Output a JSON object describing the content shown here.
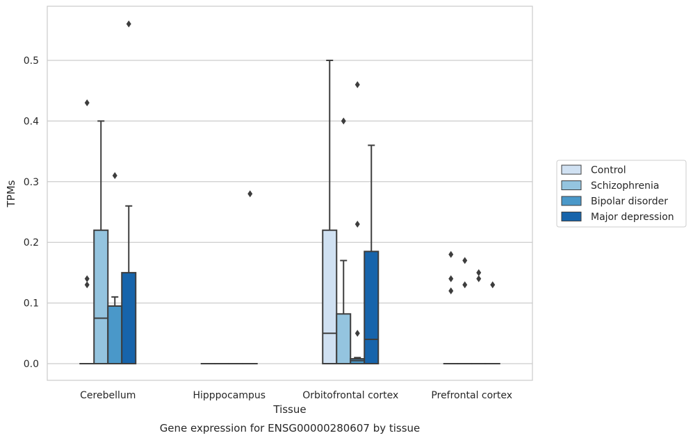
{
  "caption": "Gene expression for ENSG00000280607 by tissue",
  "chart_data": {
    "type": "box",
    "xlabel": "Tissue",
    "ylabel": "TPMs",
    "ylim": [
      -0.027,
      0.588
    ],
    "yticks": [
      0.0,
      0.1,
      0.2,
      0.3,
      0.4,
      0.5
    ],
    "ytick_labels": [
      "0.0",
      "0.1",
      "0.2",
      "0.3",
      "0.4",
      "0.5"
    ],
    "grid": "horizontal",
    "legend_position": "right",
    "categories": [
      "Cerebellum",
      "Hipppocampus",
      "Orbitofrontal cortex",
      "Prefrontal cortex"
    ],
    "series": [
      {
        "name": "Control",
        "color": "#d0e1f2",
        "boxes": [
          {
            "q1": 0.0,
            "median": 0.0,
            "q3": 0.0,
            "whisker_low": 0.0,
            "whisker_high": 0.0,
            "outliers": [
              0.43,
              0.14,
              0.13
            ]
          },
          {
            "q1": 0.0,
            "median": 0.0,
            "q3": 0.0,
            "whisker_low": 0.0,
            "whisker_high": 0.0,
            "outliers": []
          },
          {
            "q1": 0.0,
            "median": 0.05,
            "q3": 0.22,
            "whisker_low": 0.0,
            "whisker_high": 0.5,
            "outliers": []
          },
          {
            "q1": 0.0,
            "median": 0.0,
            "q3": 0.0,
            "whisker_low": 0.0,
            "whisker_high": 0.0,
            "outliers": [
              0.18,
              0.14,
              0.12
            ]
          }
        ]
      },
      {
        "name": "Schizophrenia",
        "color": "#94c4df",
        "boxes": [
          {
            "q1": 0.0,
            "median": 0.075,
            "q3": 0.22,
            "whisker_low": 0.0,
            "whisker_high": 0.4,
            "outliers": []
          },
          {
            "q1": 0.0,
            "median": 0.0,
            "q3": 0.0,
            "whisker_low": 0.0,
            "whisker_high": 0.0,
            "outliers": []
          },
          {
            "q1": 0.0,
            "median": 0.0,
            "q3": 0.082,
            "whisker_low": 0.0,
            "whisker_high": 0.17,
            "outliers": [
              0.4
            ]
          },
          {
            "q1": 0.0,
            "median": 0.0,
            "q3": 0.0,
            "whisker_low": 0.0,
            "whisker_high": 0.0,
            "outliers": [
              0.17,
              0.13
            ]
          }
        ]
      },
      {
        "name": "Bipolar disorder",
        "color": "#4a98c9",
        "boxes": [
          {
            "q1": 0.0,
            "median": 0.095,
            "q3": 0.095,
            "whisker_low": 0.0,
            "whisker_high": 0.11,
            "outliers": [
              0.31
            ]
          },
          {
            "q1": 0.0,
            "median": 0.0,
            "q3": 0.0,
            "whisker_low": 0.0,
            "whisker_high": 0.0,
            "outliers": []
          },
          {
            "q1": 0.0,
            "median": 0.005,
            "q3": 0.008,
            "whisker_low": 0.0,
            "whisker_high": 0.01,
            "outliers": [
              0.46,
              0.23,
              0.05
            ]
          },
          {
            "q1": 0.0,
            "median": 0.0,
            "q3": 0.0,
            "whisker_low": 0.0,
            "whisker_high": 0.0,
            "outliers": [
              0.15,
              0.14
            ]
          }
        ]
      },
      {
        "name": "Major depression",
        "color": "#1764ab",
        "boxes": [
          {
            "q1": 0.0,
            "median": 0.0,
            "q3": 0.15,
            "whisker_low": 0.0,
            "whisker_high": 0.26,
            "outliers": [
              0.56
            ]
          },
          {
            "q1": 0.0,
            "median": 0.0,
            "q3": 0.0,
            "whisker_low": 0.0,
            "whisker_high": 0.0,
            "outliers": [
              0.28
            ]
          },
          {
            "q1": 0.0,
            "median": 0.04,
            "q3": 0.185,
            "whisker_low": 0.0,
            "whisker_high": 0.36,
            "outliers": []
          },
          {
            "q1": 0.0,
            "median": 0.0,
            "q3": 0.0,
            "whisker_low": 0.0,
            "whisker_high": 0.0,
            "outliers": [
              0.13
            ]
          }
        ]
      }
    ]
  }
}
